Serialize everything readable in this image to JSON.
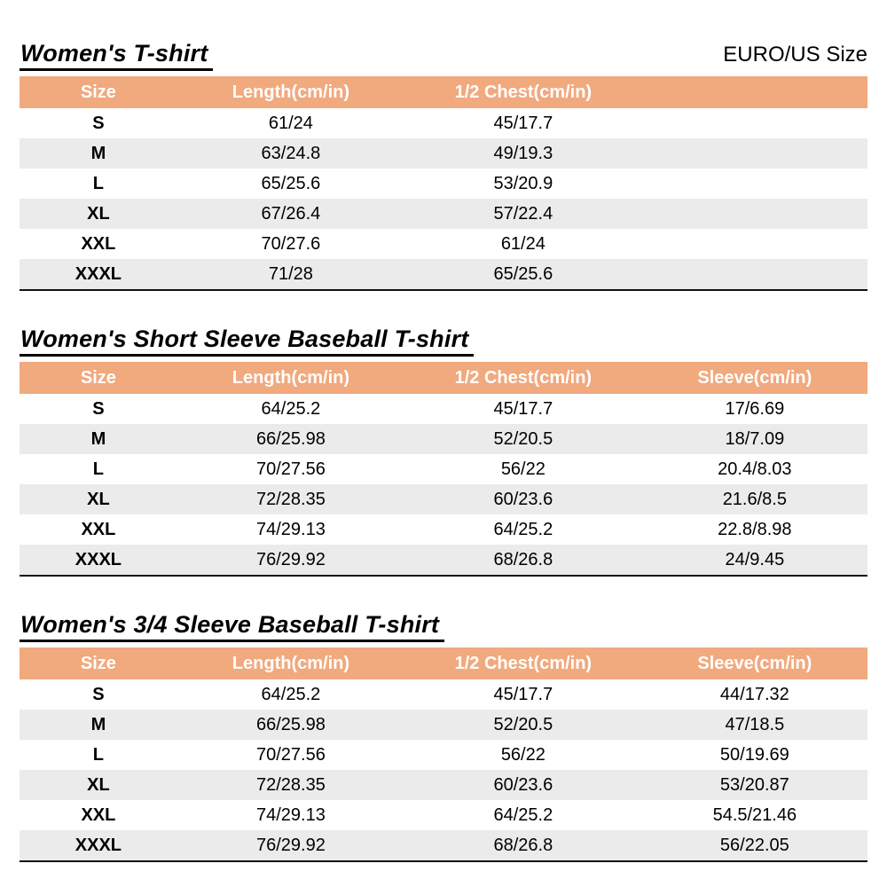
{
  "page": {
    "size_standard_label": "EURO/US Size"
  },
  "colors": {
    "header_bg": "#F1A97E",
    "stripe_bg": "#EBEBEB"
  },
  "tables": [
    {
      "title": "Women's T-shirt",
      "columns": [
        "Size",
        "Length(cm/in)",
        "1/2 Chest(cm/in)",
        ""
      ],
      "rows": [
        [
          "S",
          "61/24",
          "45/17.7",
          ""
        ],
        [
          "M",
          "63/24.8",
          "49/19.3",
          ""
        ],
        [
          "L",
          "65/25.6",
          "53/20.9",
          ""
        ],
        [
          "XL",
          "67/26.4",
          "57/22.4",
          ""
        ],
        [
          "XXL",
          "70/27.6",
          "61/24",
          ""
        ],
        [
          "XXXL",
          "71/28",
          "65/25.6",
          ""
        ]
      ]
    },
    {
      "title": "Women's Short Sleeve Baseball T-shirt",
      "columns": [
        "Size",
        "Length(cm/in)",
        "1/2 Chest(cm/in)",
        "Sleeve(cm/in)"
      ],
      "rows": [
        [
          "S",
          "64/25.2",
          "45/17.7",
          "17/6.69"
        ],
        [
          "M",
          "66/25.98",
          "52/20.5",
          "18/7.09"
        ],
        [
          "L",
          "70/27.56",
          "56/22",
          "20.4/8.03"
        ],
        [
          "XL",
          "72/28.35",
          "60/23.6",
          "21.6/8.5"
        ],
        [
          "XXL",
          "74/29.13",
          "64/25.2",
          "22.8/8.98"
        ],
        [
          "XXXL",
          "76/29.92",
          "68/26.8",
          "24/9.45"
        ]
      ]
    },
    {
      "title": "Women's 3/4 Sleeve Baseball T-shirt",
      "columns": [
        "Size",
        "Length(cm/in)",
        "1/2 Chest(cm/in)",
        "Sleeve(cm/in)"
      ],
      "rows": [
        [
          "S",
          "64/25.2",
          "45/17.7",
          "44/17.32"
        ],
        [
          "M",
          "66/25.98",
          "52/20.5",
          "47/18.5"
        ],
        [
          "L",
          "70/27.56",
          "56/22",
          "50/19.69"
        ],
        [
          "XL",
          "72/28.35",
          "60/23.6",
          "53/20.87"
        ],
        [
          "XXL",
          "74/29.13",
          "64/25.2",
          "54.5/21.46"
        ],
        [
          "XXXL",
          "76/29.92",
          "68/26.8",
          "56/22.05"
        ]
      ]
    }
  ]
}
